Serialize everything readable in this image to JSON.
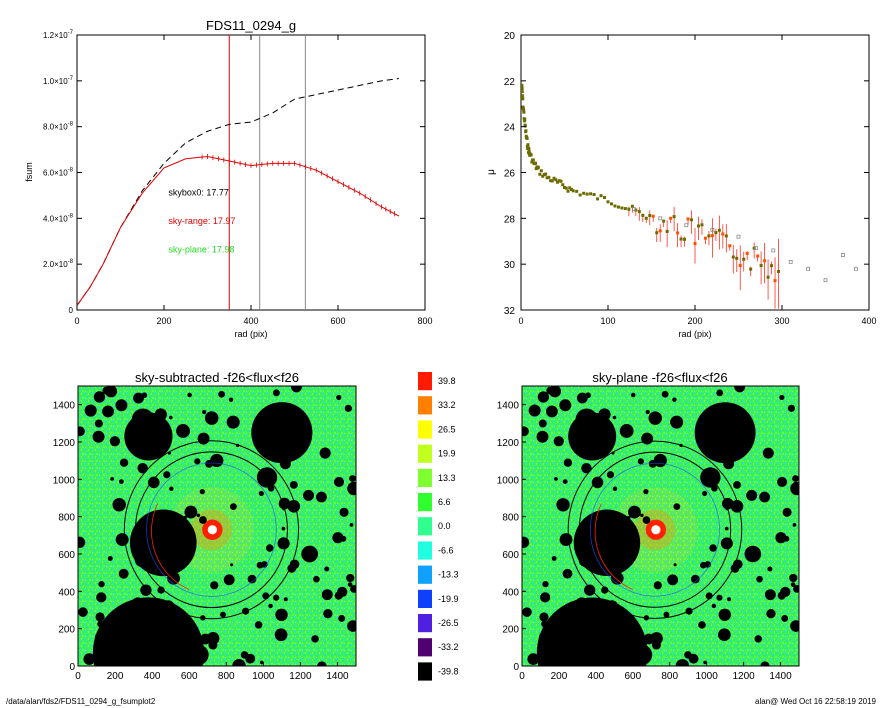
{
  "chart_data": [
    {
      "type": "line",
      "title": "FDS11_0294_g",
      "xlabel": "rad (pix)",
      "ylabel": "fsum",
      "xlim": [
        0,
        800
      ],
      "ylim": [
        0,
        1.2e-07
      ],
      "x_ticks": [
        "0",
        "200",
        "400",
        "600",
        "800"
      ],
      "y_ticks": [
        {
          "m": "0",
          "e": ""
        },
        {
          "m": "2.0×10",
          "e": "-8"
        },
        {
          "m": "4.0×10",
          "e": "-8"
        },
        {
          "m": "6.0×10",
          "e": "-8"
        },
        {
          "m": "8.0×10",
          "e": "-8"
        },
        {
          "m": "1.0×10",
          "e": "-7"
        },
        {
          "m": "1.2×10",
          "e": "-7"
        }
      ],
      "vlines": [
        {
          "x": 350,
          "color": "#e00000"
        },
        {
          "x": 420,
          "color": "#888888"
        },
        {
          "x": 525,
          "color": "#888888"
        }
      ],
      "annotations": [
        {
          "text": "skybox0: 17.77",
          "color": "#000000",
          "x": 210,
          "y": 5e-08
        },
        {
          "text": "sky-range: 17.97",
          "color": "#e00000",
          "x": 210,
          "y": 3.75e-08
        },
        {
          "text": "sky-plane: 17.98",
          "color": "#22dd22",
          "x": 210,
          "y": 2.5e-08
        }
      ],
      "series": [
        {
          "style": "dashed",
          "color": "#000000",
          "x": [
            0,
            30,
            60,
            100,
            150,
            200,
            250,
            300,
            350,
            400,
            450,
            500,
            550,
            600,
            650,
            700,
            740
          ],
          "y": [
            2e-09,
            1e-08,
            2e-08,
            3.6e-08,
            5.2e-08,
            6.4e-08,
            7.3e-08,
            7.8e-08,
            8.1e-08,
            8.2e-08,
            8.6e-08,
            9.2e-08,
            9.4e-08,
            9.6e-08,
            9.8e-08,
            1e-07,
            1.01e-07
          ]
        },
        {
          "style": "solid",
          "color": "#e00000",
          "x": [
            0,
            30,
            60,
            100,
            150,
            200,
            250,
            300,
            350,
            400,
            450,
            500,
            550,
            600,
            650,
            700,
            740
          ],
          "y": [
            2e-09,
            1e-08,
            2e-08,
            3.6e-08,
            5.1e-08,
            6.2e-08,
            6.6e-08,
            6.7e-08,
            6.5e-08,
            6.3e-08,
            6.4e-08,
            6.4e-08,
            6.1e-08,
            5.6e-08,
            5.1e-08,
            4.5e-08,
            4.1e-08
          ]
        }
      ]
    },
    {
      "type": "scatter",
      "xlabel": "rad (pix)",
      "ylabel": "μ",
      "xlim": [
        0,
        400
      ],
      "ylim": [
        32,
        20
      ],
      "x_ticks": [
        "0",
        "100",
        "200",
        "300",
        "400"
      ],
      "y_ticks": [
        "20",
        "22",
        "24",
        "26",
        "28",
        "30",
        "32"
      ],
      "series": [
        {
          "name": "",
          "color": "#6b6b00",
          "x": [
            1,
            2,
            4,
            6,
            8,
            10,
            15,
            20,
            30,
            40,
            50,
            60,
            80,
            100,
            120,
            140,
            160,
            180,
            200,
            220,
            240,
            260,
            280,
            300
          ],
          "y": [
            22.2,
            22.9,
            23.7,
            24.4,
            24.9,
            25.2,
            25.6,
            25.9,
            26.2,
            26.4,
            26.6,
            26.8,
            27.0,
            27.2,
            27.5,
            27.8,
            28.1,
            28.4,
            28.7,
            29.0,
            29.3,
            29.7,
            30.0,
            30.4
          ]
        },
        {
          "name": "",
          "color": "#888888",
          "x": [
            130,
            160,
            190,
            220,
            250,
            270,
            290,
            310,
            330,
            350,
            370,
            385
          ],
          "y": [
            27.6,
            28.0,
            28.3,
            28.5,
            28.8,
            29.3,
            29.4,
            29.9,
            30.2,
            30.7,
            29.6,
            30.2
          ]
        }
      ]
    },
    {
      "type": "heatmap",
      "title": "sky-subtracted -f26<flux<f26",
      "xlim": [
        0,
        1500
      ],
      "ylim": [
        0,
        1500
      ],
      "x_ticks": [
        "0",
        "200",
        "400",
        "600",
        "800",
        "1000",
        "1200",
        "1400"
      ],
      "y_ticks": [
        "0",
        "200",
        "400",
        "600",
        "800",
        "1000",
        "1200",
        "1400"
      ]
    },
    {
      "type": "heatmap",
      "title": "sky-plane -f26<flux<f26",
      "xlim": [
        0,
        1500
      ],
      "ylim": [
        0,
        1500
      ],
      "x_ticks": [
        "0",
        "200",
        "400",
        "600",
        "800",
        "1000",
        "1200",
        "1400"
      ],
      "y_ticks": [
        "0",
        "200",
        "400",
        "600",
        "800",
        "1000",
        "1200",
        "1400"
      ]
    }
  ],
  "colorbar": {
    "levels": [
      "39.8",
      "33.2",
      "26.5",
      "19.9",
      "13.3",
      "6.6",
      "0.0",
      "-6.6",
      "-13.3",
      "-19.9",
      "-26.5",
      "-33.2",
      "-39.8"
    ],
    "colors": [
      "#ff1a00",
      "#ff8000",
      "#ffff00",
      "#c0ff20",
      "#80ff30",
      "#30ff30",
      "#30ff90",
      "#20ffe0",
      "#10a0ff",
      "#1040ff",
      "#5020e0",
      "#500070",
      "#000000"
    ]
  },
  "footer": {
    "left": "/data/alan/fds2/FDS11_0294_g_fsumplot2",
    "right": "alan@  Wed Oct 16 22:58:19 2019"
  }
}
